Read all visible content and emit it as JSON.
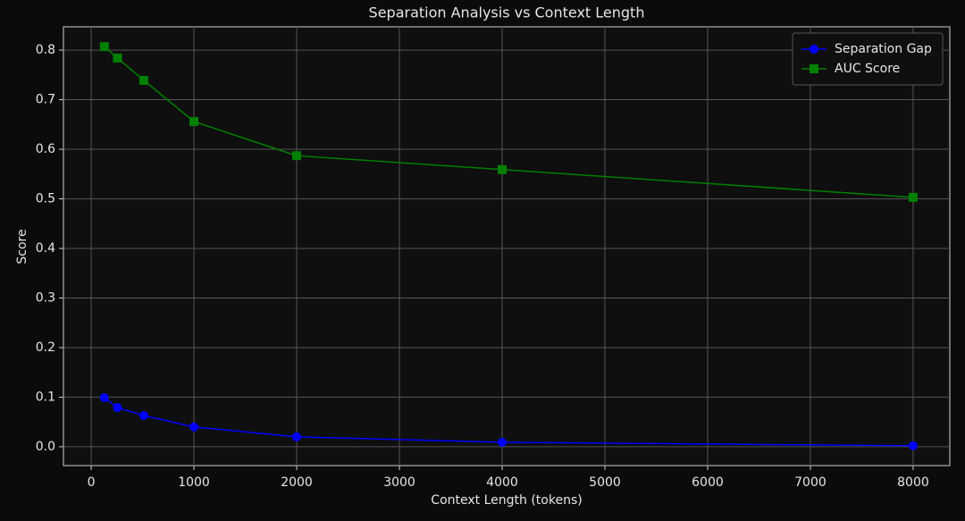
{
  "chart_data": {
    "type": "line",
    "title": "Separation Analysis vs Context Length",
    "x_label": "Context Length (tokens)",
    "y_label": "Score",
    "x": [
      128,
      256,
      512,
      1000,
      2000,
      4000,
      8000
    ],
    "series": [
      {
        "name": "Separation Gap",
        "color": "#0000ff",
        "marker": "circle",
        "values": [
          0.099,
          0.079,
          0.063,
          0.04,
          0.02,
          0.009,
          0.002
        ]
      },
      {
        "name": "AUC Score",
        "color": "#008000",
        "marker": "square",
        "values": [
          0.807,
          0.784,
          0.739,
          0.656,
          0.587,
          0.559,
          0.503
        ]
      }
    ],
    "xlim": [
      -270,
      8357
    ],
    "xticks": [
      0,
      1000,
      2000,
      3000,
      4000,
      5000,
      6000,
      7000,
      8000
    ],
    "ylim": [
      -0.038,
      0.847
    ],
    "yticks": [
      {
        "value": 0,
        "label": "0.0"
      },
      0.1,
      0.2,
      0.3,
      0.4,
      0.5,
      0.6,
      0.7,
      0.8
    ],
    "grid": true,
    "legend": "upper right"
  }
}
